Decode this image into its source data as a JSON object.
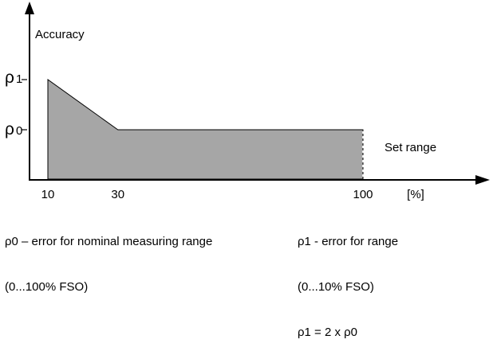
{
  "chart_data": {
    "type": "area",
    "ylabel": "Accuracy",
    "x_unit": "[%]",
    "xticks": [
      "10",
      "30",
      "100"
    ],
    "yticks": [
      {
        "sym": "ρ",
        "sub": "1",
        "value": 2
      },
      {
        "sym": "ρ",
        "sub": "0",
        "value": 1
      }
    ],
    "x": [
      10,
      30,
      100
    ],
    "y": [
      2,
      1,
      1
    ],
    "region_label": "Set range",
    "fill_color": "#a6a6a6"
  },
  "notes": {
    "left_line1": "ρ0 – error for nominal measuring range",
    "left_line2": "(0...100% FSO)",
    "right_line1": "ρ1 - error for range",
    "right_line2": "(0...10% FSO)",
    "right_line3": "ρ1 = 2 x ρ0"
  }
}
